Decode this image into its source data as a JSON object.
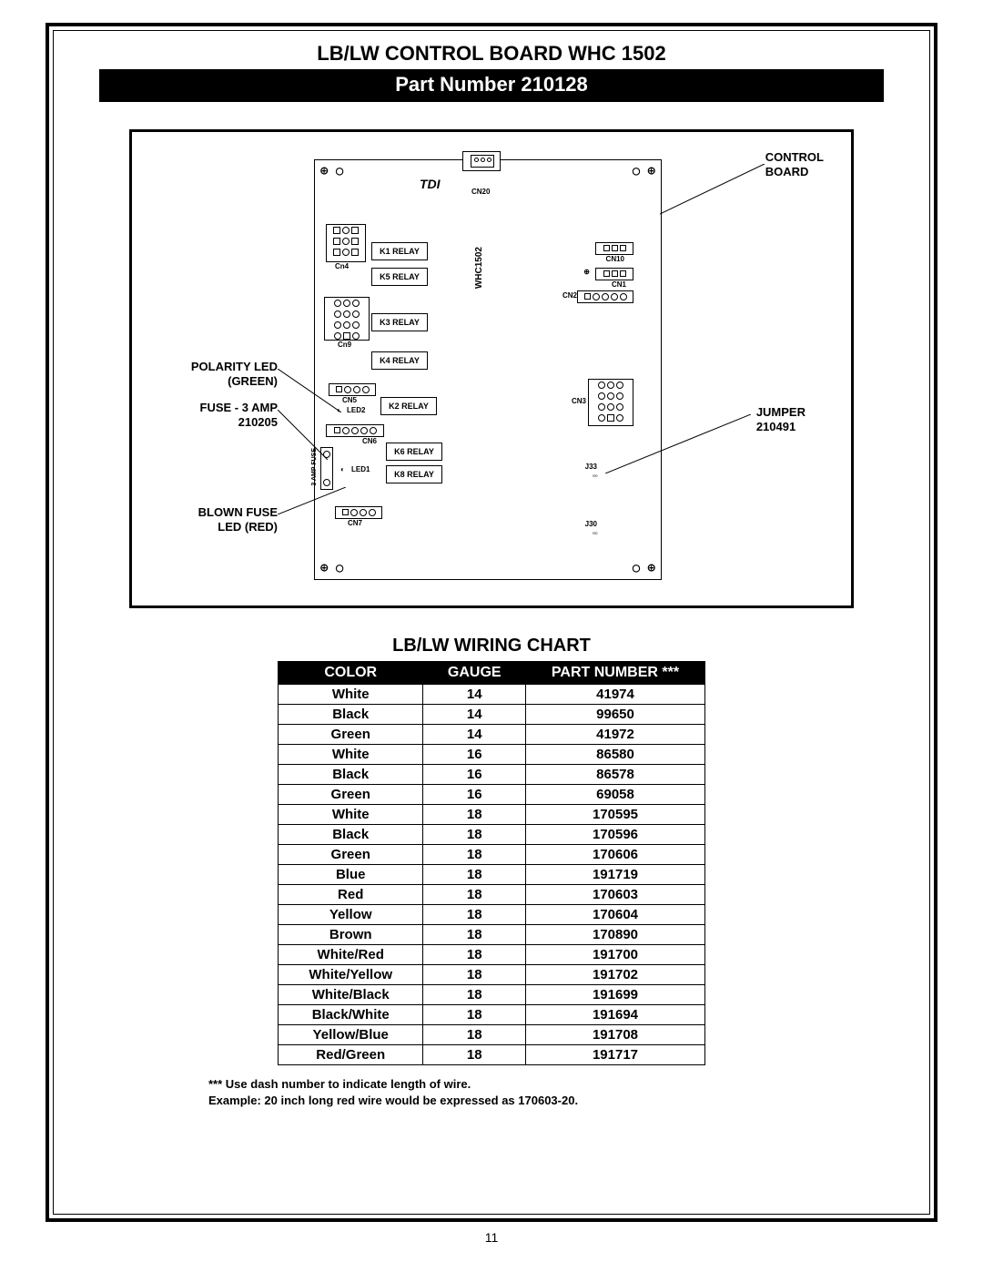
{
  "header": {
    "title_line1": "LB/LW  CONTROL BOARD WHC 1502",
    "title_line2": "Part Number 210128"
  },
  "diagram": {
    "board_model": "WHC1502",
    "logo_text": "TDI",
    "callouts": {
      "control_board": "CONTROL\nBOARD",
      "polarity_led": "POLARITY LED\n(GREEN)",
      "fuse": "FUSE - 3 AMP\n210205",
      "blown_fuse": "BLOWN FUSE\nLED (RED)",
      "jumper": "JUMPER\n210491"
    },
    "relays": [
      "K1 RELAY",
      "K5 RELAY",
      "K3 RELAY",
      "K4 RELAY",
      "K2 RELAY",
      "K6 RELAY",
      "K8 RELAY"
    ],
    "connectors": {
      "cn20": "CN20",
      "cn4": "Cn4",
      "cn9": "Cn9",
      "cn5": "CN5",
      "cn6": "CN6",
      "cn7": "CN7",
      "cn10": "CN10",
      "cn1": "CN1",
      "cn2": "CN2",
      "cn3": "CN3",
      "j33": "J33",
      "j30": "J30"
    },
    "leds": {
      "led1": "LED1",
      "led2": "LED2"
    },
    "fuse_label": "3 AMP FUSE"
  },
  "wiring_chart": {
    "title": "LB/LW  WIRING CHART",
    "columns": [
      "COLOR",
      "GAUGE",
      "PART NUMBER ***"
    ],
    "rows": [
      [
        "White",
        "14",
        "41974"
      ],
      [
        "Black",
        "14",
        "99650"
      ],
      [
        "Green",
        "14",
        "41972"
      ],
      [
        "White",
        "16",
        "86580"
      ],
      [
        "Black",
        "16",
        "86578"
      ],
      [
        "Green",
        "16",
        "69058"
      ],
      [
        "White",
        "18",
        "170595"
      ],
      [
        "Black",
        "18",
        "170596"
      ],
      [
        "Green",
        "18",
        "170606"
      ],
      [
        "Blue",
        "18",
        "191719"
      ],
      [
        "Red",
        "18",
        "170603"
      ],
      [
        "Yellow",
        "18",
        "170604"
      ],
      [
        "Brown",
        "18",
        "170890"
      ],
      [
        "White/Red",
        "18",
        "191700"
      ],
      [
        "White/Yellow",
        "18",
        "191702"
      ],
      [
        "White/Black",
        "18",
        "191699"
      ],
      [
        "Black/White",
        "18",
        "191694"
      ],
      [
        "Yellow/Blue",
        "18",
        "191708"
      ],
      [
        "Red/Green",
        "18",
        "191717"
      ]
    ],
    "footnote_line1": "*** Use dash number to indicate length of wire.",
    "footnote_line2": "Example: 20 inch long red wire would be expressed as 170603-20."
  },
  "page_number": "11"
}
